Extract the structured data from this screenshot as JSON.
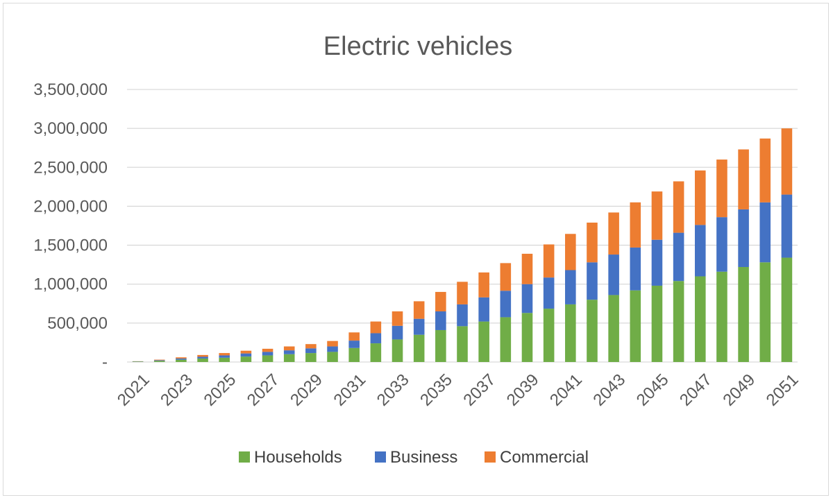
{
  "chart_data": {
    "type": "bar",
    "stacked": true,
    "title": "Electric vehicles",
    "xlabel": "",
    "ylabel": "",
    "ylim": [
      0,
      3500000
    ],
    "y_ticks": [
      0,
      500000,
      1000000,
      1500000,
      2000000,
      2500000,
      3000000,
      3500000
    ],
    "y_tick_labels": [
      "-",
      "500,000",
      "1,000,000",
      "1,500,000",
      "2,000,000",
      "2,500,000",
      "3,000,000",
      "3,500,000"
    ],
    "grid": true,
    "legend_position": "bottom",
    "categories": [
      "2021",
      "2022",
      "2023",
      "2024",
      "2025",
      "2026",
      "2027",
      "2028",
      "2029",
      "2030",
      "2031",
      "2032",
      "2033",
      "2034",
      "2035",
      "2036",
      "2037",
      "2038",
      "2039",
      "2040",
      "2041",
      "2042",
      "2043",
      "2044",
      "2045",
      "2046",
      "2047",
      "2048",
      "2049",
      "2050",
      "2051"
    ],
    "x_tick_labels": [
      "2021",
      "2023",
      "2025",
      "2027",
      "2029",
      "2031",
      "2033",
      "2035",
      "2037",
      "2039",
      "2041",
      "2043",
      "2045",
      "2047",
      "2049",
      "2051"
    ],
    "series": [
      {
        "name": "Households",
        "color": "#70ad47",
        "values": [
          5000,
          15000,
          30000,
          45000,
          55000,
          70000,
          85000,
          100000,
          115000,
          130000,
          180000,
          240000,
          290000,
          350000,
          410000,
          460000,
          520000,
          575000,
          630000,
          685000,
          740000,
          800000,
          860000,
          920000,
          980000,
          1040000,
          1100000,
          1160000,
          1220000,
          1280000,
          1340000
        ]
      },
      {
        "name": "Business",
        "color": "#4472c4",
        "values": [
          3000,
          8000,
          15000,
          22000,
          30000,
          40000,
          45000,
          50000,
          60000,
          70000,
          95000,
          130000,
          175000,
          205000,
          240000,
          280000,
          310000,
          340000,
          370000,
          400000,
          440000,
          480000,
          520000,
          550000,
          590000,
          620000,
          660000,
          700000,
          740000,
          770000,
          810000
        ]
      },
      {
        "name": "Commercial",
        "color": "#ed7d31",
        "values": [
          2000,
          7000,
          15000,
          23000,
          30000,
          35000,
          40000,
          50000,
          55000,
          70000,
          105000,
          150000,
          185000,
          225000,
          250000,
          290000,
          320000,
          355000,
          390000,
          425000,
          465000,
          510000,
          540000,
          580000,
          620000,
          660000,
          700000,
          740000,
          770000,
          820000,
          850000
        ]
      }
    ]
  }
}
